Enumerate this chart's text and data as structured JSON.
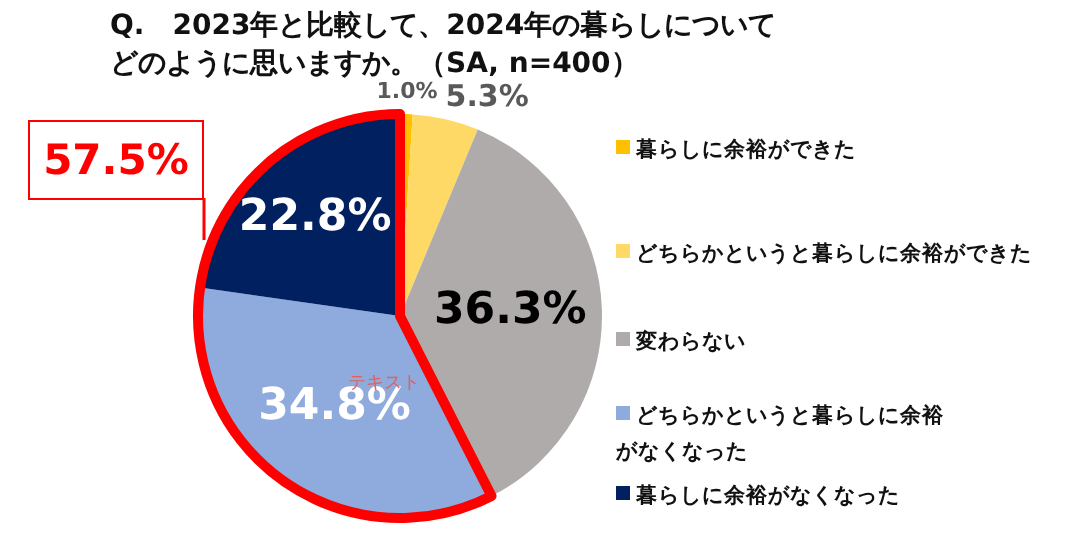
{
  "chart_data": {
    "type": "pie",
    "title": "Q.　2023年と比較して、2024年の暮らしについてどのように思いますか。（SA, n=400）",
    "categories": [
      "暮らしに余裕ができた",
      "どちらかというと暮らしに余裕ができた",
      "変わらない",
      "どちらかというと暮らしに余裕がなくなった",
      "暮らしに余裕がなくなった"
    ],
    "values": [
      1.0,
      5.3,
      36.3,
      34.8,
      22.8
    ],
    "colors": [
      "#ffc000",
      "#ffd966",
      "#afabab",
      "#8faadc",
      "#002060"
    ],
    "value_labels": [
      "1.0%",
      "5.3%",
      "36.3%",
      "34.8%",
      "22.8%"
    ],
    "legend": "right",
    "annotations": [
      "57.5%",
      "テキスト"
    ]
  }
}
